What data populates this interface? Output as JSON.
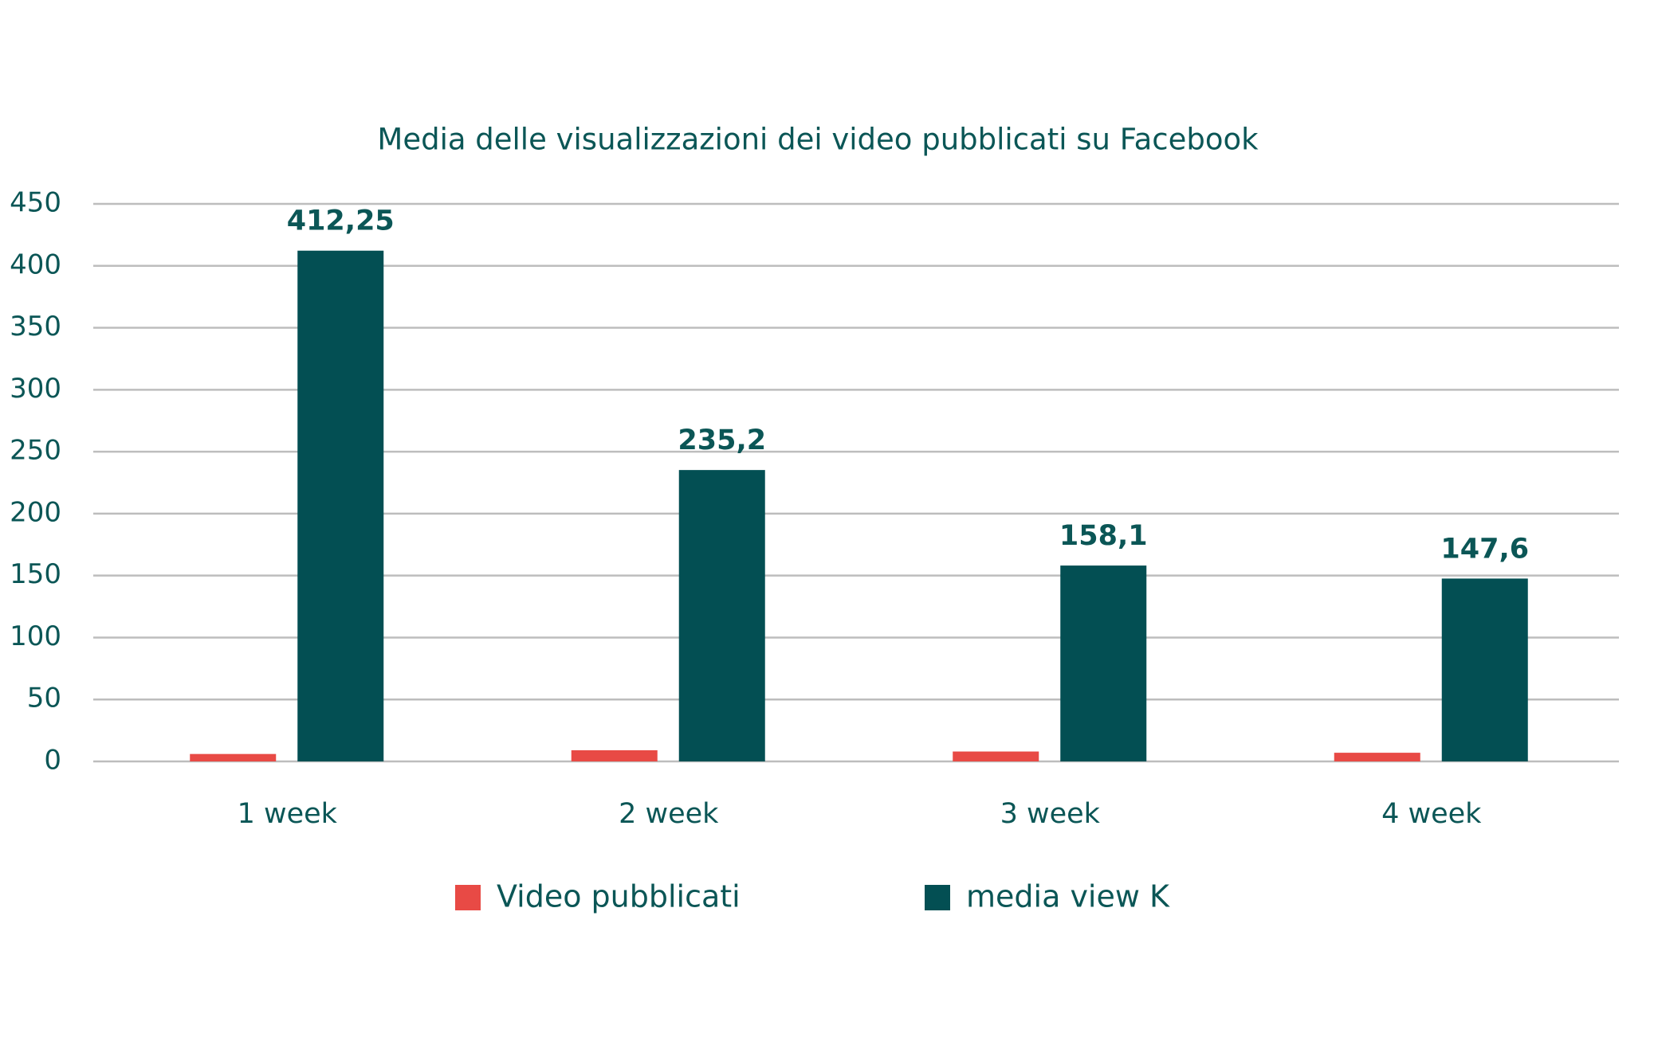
{
  "chart_data": {
    "type": "bar",
    "title": "Media delle visualizzazioni dei video pubblicati su Facebook",
    "categories": [
      "1 week",
      "2 week",
      "3 week",
      "4 week"
    ],
    "series": [
      {
        "name": "Video pubblicati",
        "color": "#e84a45",
        "values": [
          6,
          9,
          8,
          7
        ]
      },
      {
        "name": "media view K",
        "color": "#034f53",
        "values": [
          412.25,
          235.2,
          158.1,
          147.6
        ],
        "value_labels": [
          "412,25",
          "235,2",
          "158,1",
          "147,6"
        ]
      }
    ],
    "ylim": [
      0,
      450
    ],
    "yticks": [
      0,
      50,
      100,
      150,
      200,
      250,
      300,
      350,
      400,
      450
    ],
    "grid": true
  }
}
